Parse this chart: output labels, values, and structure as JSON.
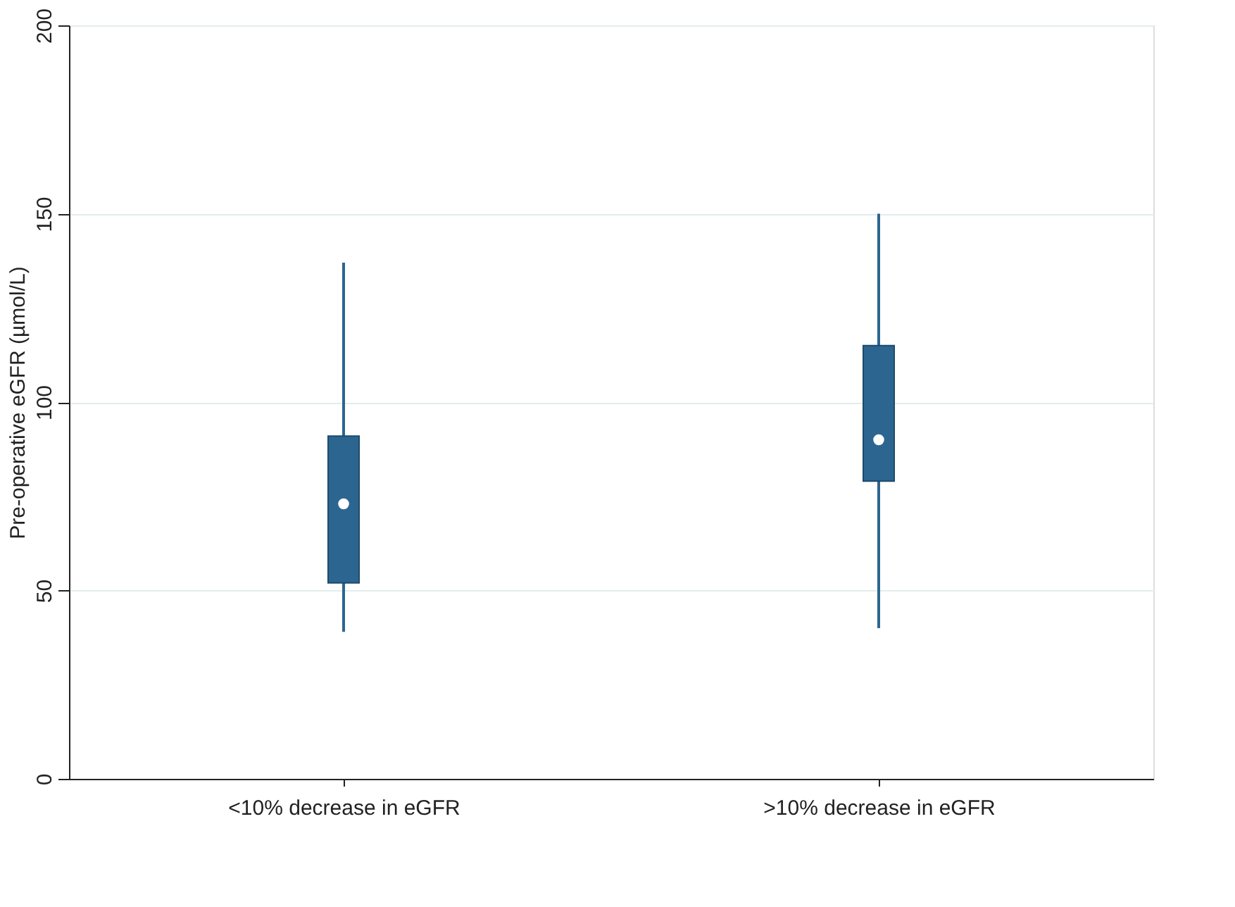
{
  "chart_data": {
    "type": "box",
    "ylabel": "Pre-operative eGFR (µmol/L)",
    "categories": [
      "<10% decrease in eGFR",
      ">10% decrease in eGFR"
    ],
    "boxes": [
      {
        "low": 39,
        "q1": 52,
        "median": 73,
        "q3": 91,
        "high": 137
      },
      {
        "low": 40,
        "q1": 79,
        "median": 90,
        "q3": 115,
        "high": 150
      }
    ],
    "color": "#2c6690",
    "ylim": [
      0,
      200
    ],
    "yticks": [
      0,
      50,
      100,
      150,
      200
    ],
    "grid": "y"
  }
}
